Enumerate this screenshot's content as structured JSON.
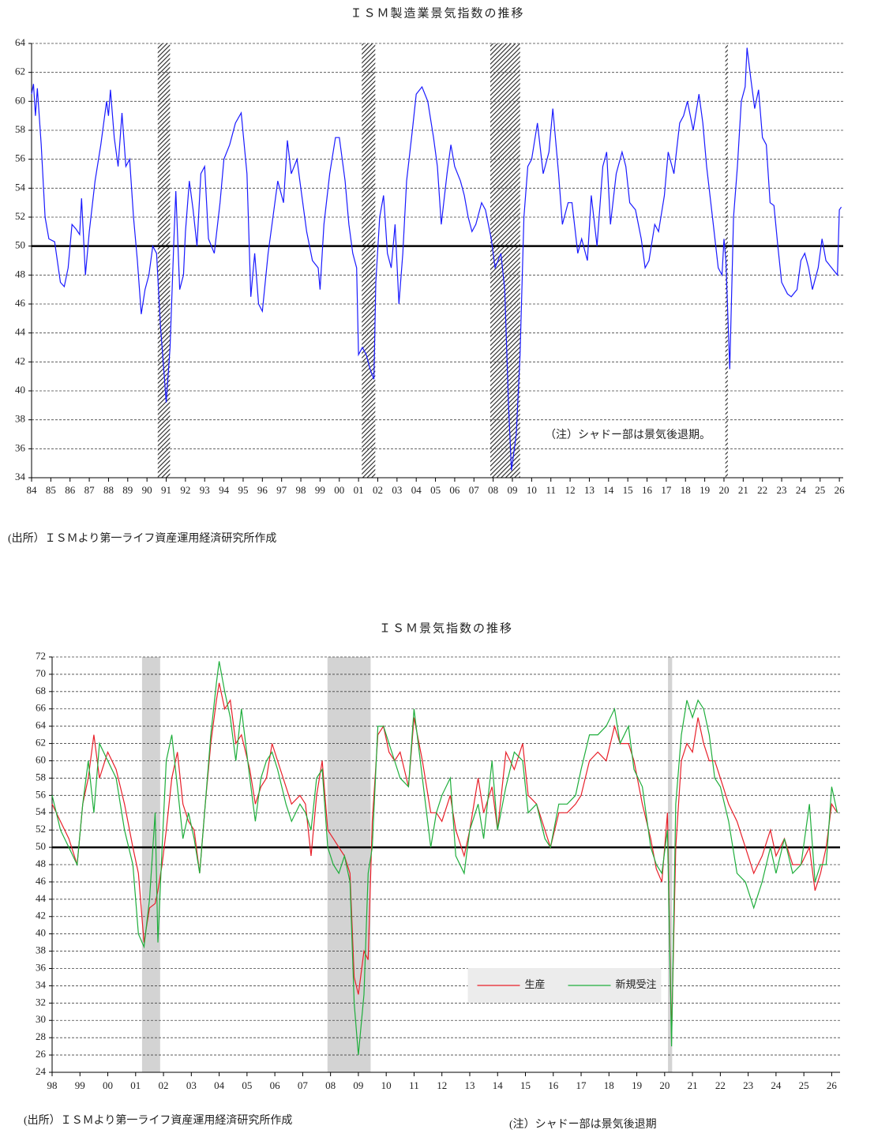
{
  "chart_data": [
    {
      "type": "line",
      "title": "ＩＳＭ製造業景気指数の推移",
      "source": "(出所）ＩＳＭより第一ライフ資産運用経済研究所作成",
      "note": "（注）シャドー部は景気後退期。",
      "xlim": [
        1984,
        2026.2
      ],
      "ylim": [
        34,
        64
      ],
      "yticks": [
        34,
        36,
        38,
        40,
        42,
        44,
        46,
        48,
        50,
        52,
        54,
        56,
        58,
        60,
        62,
        64
      ],
      "xticks": [
        {
          "value": 1984,
          "label": "84"
        },
        {
          "value": 1985,
          "label": "85"
        },
        {
          "value": 1986,
          "label": "86"
        },
        {
          "value": 1987,
          "label": "87"
        },
        {
          "value": 1988,
          "label": "88"
        },
        {
          "value": 1989,
          "label": "89"
        },
        {
          "value": 1990,
          "label": "90"
        },
        {
          "value": 1991,
          "label": "91"
        },
        {
          "value": 1992,
          "label": "92"
        },
        {
          "value": 1993,
          "label": "93"
        },
        {
          "value": 1994,
          "label": "94"
        },
        {
          "value": 1995,
          "label": "95"
        },
        {
          "value": 1996,
          "label": "96"
        },
        {
          "value": 1997,
          "label": "97"
        },
        {
          "value": 1998,
          "label": "98"
        },
        {
          "value": 1999,
          "label": "99"
        },
        {
          "value": 2000,
          "label": "00"
        },
        {
          "value": 2001,
          "label": "01"
        },
        {
          "value": 2002,
          "label": "02"
        },
        {
          "value": 2003,
          "label": "03"
        },
        {
          "value": 2004,
          "label": "04"
        },
        {
          "value": 2005,
          "label": "05"
        },
        {
          "value": 2006,
          "label": "06"
        },
        {
          "value": 2007,
          "label": "07"
        },
        {
          "value": 2008,
          "label": "08"
        },
        {
          "value": 2009,
          "label": "09"
        },
        {
          "value": 2010,
          "label": "10"
        },
        {
          "value": 2011,
          "label": "11"
        },
        {
          "value": 2012,
          "label": "12"
        },
        {
          "value": 2013,
          "label": "13"
        },
        {
          "value": 2014,
          "label": "14"
        },
        {
          "value": 2015,
          "label": "15"
        },
        {
          "value": 2016,
          "label": "16"
        },
        {
          "value": 2017,
          "label": "17"
        },
        {
          "value": 2018,
          "label": "18"
        },
        {
          "value": 2019,
          "label": "19"
        },
        {
          "value": 2020,
          "label": "20"
        },
        {
          "value": 2021,
          "label": "21"
        },
        {
          "value": 2022,
          "label": "22"
        },
        {
          "value": 2023,
          "label": "23"
        },
        {
          "value": 2024,
          "label": "24"
        },
        {
          "value": 2025,
          "label": "25"
        },
        {
          "value": 2026,
          "label": "26"
        }
      ],
      "grid": true,
      "hline": 50,
      "recessions": [
        [
          1990.56,
          1991.2
        ],
        [
          2001.17,
          2001.87
        ],
        [
          2007.85,
          2009.4
        ],
        [
          2020.07,
          2020.2
        ]
      ],
      "shade_fill": "hatch",
      "x": [
        1984.0,
        1984.1,
        1984.2,
        1984.3,
        1984.5,
        1984.7,
        1984.9,
        1985.2,
        1985.5,
        1985.7,
        1985.9,
        1986.1,
        1986.3,
        1986.5,
        1986.6,
        1986.8,
        1987.0,
        1987.3,
        1987.6,
        1987.9,
        1988.0,
        1988.1,
        1988.3,
        1988.5,
        1988.7,
        1988.9,
        1989.1,
        1989.3,
        1989.5,
        1989.7,
        1989.9,
        1990.1,
        1990.3,
        1990.5,
        1990.7,
        1990.9,
        1991.0,
        1991.2,
        1991.4,
        1991.5,
        1991.7,
        1991.9,
        1992.0,
        1992.2,
        1992.4,
        1992.6,
        1992.8,
        1993.0,
        1993.2,
        1993.5,
        1993.8,
        1994.0,
        1994.3,
        1994.6,
        1994.9,
        1995.2,
        1995.4,
        1995.6,
        1995.8,
        1996.0,
        1996.3,
        1996.5,
        1996.8,
        1997.1,
        1997.3,
        1997.5,
        1997.8,
        1998.0,
        1998.3,
        1998.6,
        1998.9,
        1999.0,
        1999.2,
        1999.5,
        1999.8,
        2000.0,
        2000.3,
        2000.5,
        2000.7,
        2000.9,
        2001.0,
        2001.2,
        2001.4,
        2001.6,
        2001.8,
        2001.9,
        2002.1,
        2002.3,
        2002.5,
        2002.7,
        2002.9,
        2003.1,
        2003.3,
        2003.5,
        2003.8,
        2004.0,
        2004.3,
        2004.6,
        2004.9,
        2005.1,
        2005.3,
        2005.6,
        2005.8,
        2006.0,
        2006.3,
        2006.5,
        2006.7,
        2006.9,
        2007.1,
        2007.4,
        2007.6,
        2007.9,
        2008.1,
        2008.4,
        2008.6,
        2008.8,
        2008.95,
        2009.2,
        2009.4,
        2009.6,
        2009.8,
        2010.0,
        2010.3,
        2010.6,
        2010.9,
        2011.1,
        2011.4,
        2011.6,
        2011.9,
        2012.1,
        2012.4,
        2012.6,
        2012.9,
        2013.1,
        2013.4,
        2013.7,
        2013.9,
        2014.1,
        2014.4,
        2014.7,
        2014.9,
        2015.1,
        2015.4,
        2015.7,
        2015.9,
        2016.1,
        2016.4,
        2016.6,
        2016.9,
        2017.1,
        2017.4,
        2017.7,
        2017.9,
        2018.1,
        2018.4,
        2018.7,
        2018.9,
        2019.1,
        2019.4,
        2019.7,
        2019.9,
        2020.0,
        2020.1,
        2020.3,
        2020.5,
        2020.7,
        2020.9,
        2021.1,
        2021.2,
        2021.4,
        2021.6,
        2021.8,
        2022.0,
        2022.2,
        2022.4,
        2022.6,
        2022.8,
        2023.0,
        2023.3,
        2023.5,
        2023.8,
        2024.0,
        2024.2,
        2024.4,
        2024.6,
        2024.9,
        2025.1,
        2025.3,
        2025.6,
        2025.9,
        2026.0,
        2026.1
      ],
      "series": [
        {
          "color": "#1a1aff",
          "values": [
            60.5,
            61.2,
            59,
            60.9,
            57,
            52,
            50.5,
            50.3,
            47.5,
            47.2,
            48.5,
            51.5,
            51.2,
            50.8,
            53.3,
            48,
            51,
            54.5,
            57,
            60,
            59,
            60.8,
            57.5,
            55.5,
            59.2,
            55.5,
            56,
            52,
            49,
            45.3,
            47,
            48,
            50,
            49.5,
            44.5,
            41,
            39.2,
            43,
            50.5,
            53.8,
            47,
            48,
            51,
            54.5,
            52.5,
            50,
            55,
            55.5,
            50.5,
            49.5,
            53,
            56,
            57,
            58.5,
            59.2,
            55,
            46.5,
            49.5,
            46,
            45.5,
            49.5,
            51.5,
            54.5,
            53,
            57.3,
            55,
            56,
            54,
            51,
            49,
            48.5,
            47,
            51.5,
            55,
            57.5,
            57.5,
            54.5,
            51.5,
            49.5,
            48.5,
            42.5,
            43,
            42.5,
            41.5,
            40.8,
            47.5,
            52,
            53.5,
            49.5,
            48.5,
            51.5,
            46,
            49.5,
            54.5,
            58,
            60.5,
            61,
            60,
            57.5,
            55.5,
            51.5,
            55,
            57,
            55.5,
            54.5,
            53.5,
            52,
            51,
            51.5,
            53,
            52.5,
            50.5,
            48.5,
            49.5,
            47,
            39,
            34.5,
            37,
            42.5,
            52,
            55.5,
            56,
            58.5,
            55,
            56.5,
            59.5,
            55,
            51.5,
            53,
            53,
            49.5,
            50.5,
            49,
            53.5,
            50,
            55.5,
            56.5,
            51.5,
            55,
            56.5,
            55.5,
            53,
            52.5,
            50.5,
            48.5,
            49,
            51.5,
            51,
            53.5,
            56.5,
            55,
            58.5,
            59,
            60,
            58,
            60.5,
            58.5,
            55.5,
            52,
            48.5,
            48,
            50.5,
            49,
            41.5,
            52,
            55.5,
            60,
            61,
            63.7,
            61.5,
            59.5,
            60.8,
            57.5,
            57,
            53,
            52.8,
            50,
            47.5,
            46.7,
            46.5,
            47,
            49,
            49.5,
            48.5,
            47,
            48.5,
            50.5,
            49,
            48.5,
            48,
            52.5,
            52.7
          ]
        }
      ]
    },
    {
      "type": "line",
      "title": "ＩＳＭ景気指数の推移",
      "source": "(出所）ＩＳＭより第一ライフ資産運用経済研究所作成",
      "note": "(注）シャドー部は景気後退期",
      "xlim": [
        1998,
        2026.3
      ],
      "ylim": [
        24,
        72
      ],
      "yticks": [
        24,
        26,
        28,
        30,
        32,
        34,
        36,
        38,
        40,
        42,
        44,
        46,
        48,
        50,
        52,
        54,
        56,
        58,
        60,
        62,
        64,
        66,
        68,
        70,
        72
      ],
      "xticks": [
        {
          "value": 1998,
          "label": "98"
        },
        {
          "value": 1999,
          "label": "99"
        },
        {
          "value": 2000,
          "label": "00"
        },
        {
          "value": 2001,
          "label": "01"
        },
        {
          "value": 2002,
          "label": "02"
        },
        {
          "value": 2003,
          "label": "03"
        },
        {
          "value": 2004,
          "label": "04"
        },
        {
          "value": 2005,
          "label": "05"
        },
        {
          "value": 2006,
          "label": "06"
        },
        {
          "value": 2007,
          "label": "07"
        },
        {
          "value": 2008,
          "label": "08"
        },
        {
          "value": 2009,
          "label": "09"
        },
        {
          "value": 2010,
          "label": "10"
        },
        {
          "value": 2011,
          "label": "11"
        },
        {
          "value": 2012,
          "label": "12"
        },
        {
          "value": 2013,
          "label": "13"
        },
        {
          "value": 2014,
          "label": "14"
        },
        {
          "value": 2015,
          "label": "15"
        },
        {
          "value": 2016,
          "label": "16"
        },
        {
          "value": 2017,
          "label": "17"
        },
        {
          "value": 2018,
          "label": "18"
        },
        {
          "value": 2019,
          "label": "19"
        },
        {
          "value": 2020,
          "label": "20"
        },
        {
          "value": 2021,
          "label": "21"
        },
        {
          "value": 2022,
          "label": "22"
        },
        {
          "value": 2023,
          "label": "23"
        },
        {
          "value": 2024,
          "label": "24"
        },
        {
          "value": 2025,
          "label": "25"
        },
        {
          "value": 2026,
          "label": "26"
        }
      ],
      "grid": true,
      "hline": 50,
      "recessions": [
        [
          2001.23,
          2001.88
        ],
        [
          2007.89,
          2009.44
        ],
        [
          2020.12,
          2020.27
        ]
      ],
      "shade_fill": "#d3d3d3",
      "legend": "lower center",
      "x": [
        1998.0,
        1998.3,
        1998.6,
        1998.9,
        1999.1,
        1999.3,
        1999.5,
        1999.7,
        2000.0,
        2000.3,
        2000.6,
        2000.9,
        2001.1,
        2001.3,
        2001.5,
        2001.7,
        2001.8,
        2001.95,
        2002.1,
        2002.3,
        2002.5,
        2002.7,
        2002.9,
        2003.1,
        2003.3,
        2003.5,
        2003.7,
        2003.9,
        2004.0,
        2004.2,
        2004.4,
        2004.6,
        2004.8,
        2005.1,
        2005.3,
        2005.5,
        2005.7,
        2005.9,
        2006.1,
        2006.4,
        2006.6,
        2006.9,
        2007.1,
        2007.3,
        2007.5,
        2007.7,
        2007.9,
        2008.1,
        2008.3,
        2008.5,
        2008.7,
        2008.85,
        2009.0,
        2009.2,
        2009.35,
        2009.5,
        2009.7,
        2009.9,
        2010.1,
        2010.3,
        2010.5,
        2010.8,
        2011.0,
        2011.3,
        2011.6,
        2011.8,
        2012.0,
        2012.3,
        2012.5,
        2012.8,
        2013.0,
        2013.3,
        2013.5,
        2013.8,
        2014.0,
        2014.3,
        2014.6,
        2014.9,
        2015.1,
        2015.4,
        2015.7,
        2015.9,
        2016.2,
        2016.5,
        2016.8,
        2017.0,
        2017.3,
        2017.6,
        2017.9,
        2018.2,
        2018.4,
        2018.7,
        2018.9,
        2019.2,
        2019.5,
        2019.7,
        2019.9,
        2020.1,
        2020.25,
        2020.4,
        2020.6,
        2020.8,
        2021.0,
        2021.2,
        2021.4,
        2021.6,
        2021.8,
        2022.0,
        2022.3,
        2022.6,
        2022.9,
        2023.2,
        2023.5,
        2023.8,
        2024.0,
        2024.3,
        2024.6,
        2024.9,
        2025.2,
        2025.4,
        2025.6,
        2025.8,
        2026.0,
        2026.2
      ],
      "series": [
        {
          "name": "生産",
          "color": "#e8202a",
          "values": [
            55,
            53,
            51,
            48,
            55,
            58,
            63,
            58,
            61,
            59,
            55,
            50,
            47,
            39,
            43,
            43.5,
            45,
            48,
            52,
            58,
            61,
            55,
            53,
            52,
            47,
            55,
            62,
            67,
            69,
            66,
            67,
            62,
            63,
            59,
            55,
            57,
            58,
            62,
            60,
            57,
            55,
            56,
            55,
            49,
            56,
            60,
            52,
            51,
            50,
            49,
            47,
            35,
            33,
            38,
            37,
            53,
            63,
            64,
            61,
            60,
            61,
            57,
            65,
            60,
            54,
            54,
            53,
            56,
            52,
            49,
            52,
            58,
            54,
            57,
            52,
            61,
            59,
            62,
            56,
            55,
            52,
            50,
            54,
            54,
            55,
            56,
            60,
            61,
            60,
            64,
            62,
            62,
            60,
            55,
            51,
            47.5,
            46,
            54,
            28,
            50,
            60,
            62,
            61,
            65,
            62,
            60,
            60,
            58,
            55,
            53,
            50,
            47,
            49,
            52,
            49,
            51,
            48,
            48,
            50,
            45,
            47,
            50,
            55,
            54
          ]
        },
        {
          "name": "新規受注",
          "color": "#1fae3c",
          "values": [
            56,
            52,
            50,
            48,
            55,
            60,
            54,
            62,
            60,
            58,
            52,
            48,
            40,
            38.5,
            44,
            54,
            39,
            50,
            60,
            63,
            57,
            51,
            54,
            51,
            47,
            55,
            63,
            69,
            71.5,
            68,
            65,
            60,
            66,
            58,
            53,
            58,
            60,
            61,
            59,
            55,
            53,
            55,
            54,
            52,
            58,
            59,
            50,
            48,
            47,
            49,
            46,
            32,
            26,
            33,
            47,
            50,
            64,
            64,
            62,
            60,
            58,
            57,
            66,
            58,
            50,
            54,
            56,
            58,
            49,
            47,
            52,
            55,
            51,
            60,
            52,
            57,
            61,
            60,
            54,
            55,
            51,
            50,
            55,
            55,
            56,
            59,
            63,
            63,
            64,
            66,
            62,
            64,
            59,
            57,
            50,
            48,
            47,
            52,
            27,
            55,
            63,
            67,
            65,
            67,
            66,
            63,
            58,
            57,
            53,
            47,
            46,
            43,
            46,
            50,
            47,
            51,
            47,
            48,
            55,
            46,
            48,
            48,
            57,
            54
          ]
        }
      ]
    }
  ]
}
